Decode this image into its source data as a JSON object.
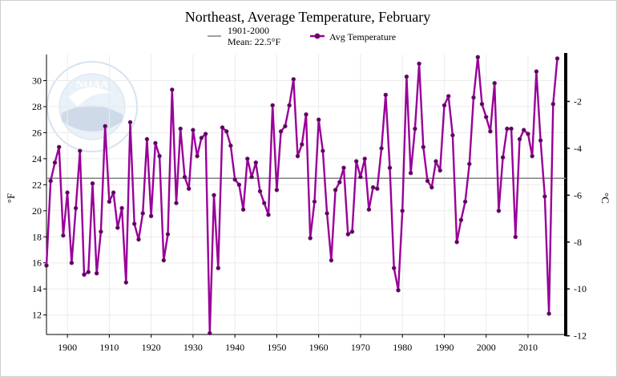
{
  "chart_data": {
    "type": "line",
    "title": "Northeast, Average Temperature, February",
    "ylabel": "°F",
    "ylabel_right": "°C",
    "xlim": [
      1895,
      2019
    ],
    "ylim": [
      10.5,
      32
    ],
    "ylim_right": [
      -11.944,
      0
    ],
    "x_ticks": [
      1900,
      1910,
      1920,
      1930,
      1940,
      1950,
      1960,
      1970,
      1980,
      1990,
      2000,
      2010
    ],
    "y_ticks": [
      12,
      14,
      16,
      18,
      20,
      22,
      24,
      26,
      28,
      30
    ],
    "y_ticks_right": [
      -12,
      -10,
      -8,
      -6,
      -4,
      -2
    ],
    "grid": true,
    "legend": [
      {
        "label_line1": "1901-2000",
        "label_line2": "Mean: 22.5°F",
        "color": "#808080"
      },
      {
        "label": "Avg Temperature",
        "color": "#990099"
      }
    ],
    "mean": 22.5,
    "series": [
      {
        "name": "Avg Temperature",
        "color": "#990099",
        "x_start": 1895,
        "values": [
          15.8,
          22.3,
          23.7,
          24.9,
          18.1,
          21.4,
          16.0,
          20.2,
          24.6,
          15.1,
          15.3,
          22.1,
          15.2,
          18.4,
          26.5,
          20.7,
          21.4,
          18.7,
          20.2,
          14.5,
          26.8,
          19.0,
          17.8,
          19.8,
          25.5,
          19.6,
          25.2,
          24.2,
          16.2,
          18.2,
          29.3,
          20.6,
          26.3,
          22.6,
          21.7,
          26.2,
          24.2,
          25.6,
          25.9,
          10.6,
          21.2,
          15.6,
          26.4,
          26.1,
          25.0,
          22.4,
          22.0,
          20.1,
          24.0,
          22.6,
          23.7,
          21.5,
          20.6,
          19.7,
          28.1,
          21.6,
          26.1,
          26.5,
          28.1,
          30.1,
          24.2,
          25.1,
          27.4,
          17.9,
          20.7,
          27.0,
          24.6,
          19.8,
          16.2,
          21.6,
          22.2,
          23.3,
          18.2,
          18.4,
          23.8,
          22.6,
          24.0,
          20.1,
          21.8,
          21.7,
          24.8,
          28.9,
          23.3,
          15.6,
          13.9,
          20.0,
          30.3,
          22.9,
          26.3,
          31.3,
          24.9,
          22.3,
          21.8,
          23.8,
          23.1,
          28.1,
          28.8,
          25.8,
          17.6,
          19.3,
          20.7,
          23.6,
          28.7,
          31.8,
          28.2,
          27.2,
          26.1,
          29.8,
          20.0,
          24.1,
          26.3,
          26.3,
          18.0,
          25.5,
          26.2,
          25.9,
          24.2,
          30.7,
          25.4,
          21.1,
          12.1,
          28.2,
          31.7
        ]
      }
    ]
  }
}
